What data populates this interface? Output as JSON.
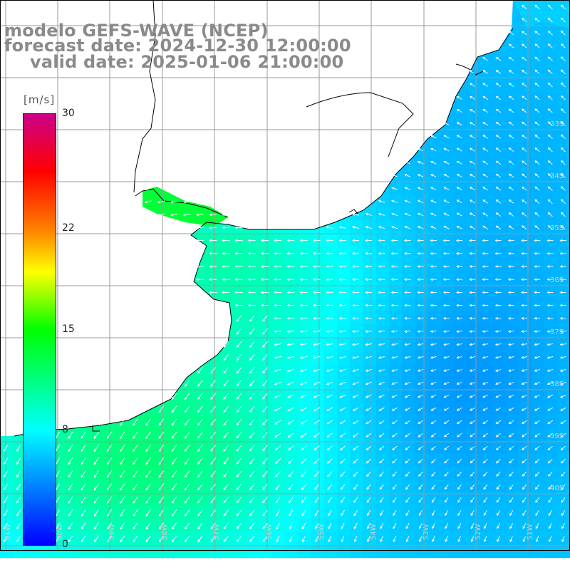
{
  "title": {
    "model": "modelo GEFS-WAVE (NCEP)",
    "forecast": "forecast date: 2024-12-30 12:00:00",
    "valid": "valid date: 2025-01-06 21:00:00"
  },
  "legend": {
    "unit": "[m/s]",
    "ticks": [
      {
        "label": "30",
        "value": 30
      },
      {
        "label": "22",
        "value": 22
      },
      {
        "label": "15",
        "value": 15
      },
      {
        "label": "8",
        "value": 8
      },
      {
        "label": "0",
        "value": 0
      }
    ],
    "stops": [
      {
        "value": 0,
        "color": "#0000ff"
      },
      {
        "value": 8,
        "color": "#00ffff"
      },
      {
        "value": 15,
        "color": "#00ff00"
      },
      {
        "value": 19,
        "color": "#ffff00"
      },
      {
        "value": 22,
        "color": "#ff8000"
      },
      {
        "value": 26,
        "color": "#ff0000"
      },
      {
        "value": 30,
        "color": "#cc0088"
      }
    ]
  },
  "map": {
    "lon_labels": [
      "61W",
      "60W",
      "59W",
      "58W",
      "57W",
      "56W",
      "55W",
      "54W",
      "53W",
      "52W",
      "51W"
    ],
    "lat_labels": [
      "33S",
      "34S",
      "35S",
      "36S",
      "37S",
      "38S",
      "39S",
      "40S"
    ],
    "land_color": "#ffffff",
    "grid_color": "#9a9a9a",
    "coast_color": "#000000",
    "arrow_color": "#ffffff"
  }
}
